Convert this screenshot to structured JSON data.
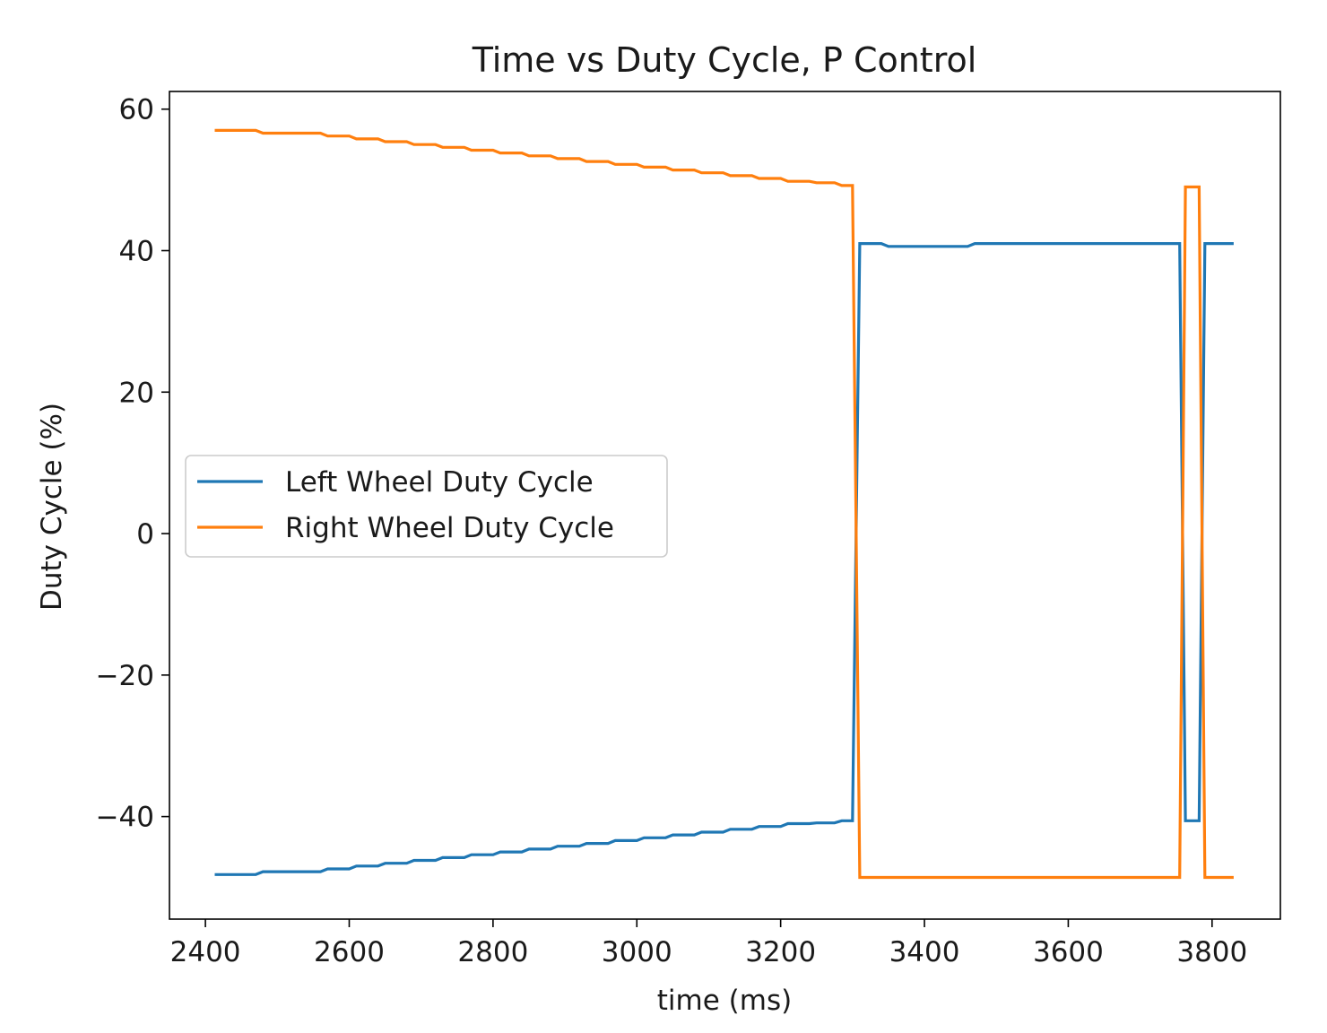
{
  "chart_data": {
    "type": "line",
    "title": "Time vs Duty Cycle, P Control",
    "xlabel": "time (ms)",
    "ylabel": "Duty Cycle (%)",
    "xlim": [
      2350,
      3895
    ],
    "ylim": [
      -54.5,
      62.5
    ],
    "xticks": [
      2400,
      2600,
      2800,
      3000,
      3200,
      3400,
      3600,
      3800
    ],
    "yticks": [
      60,
      40,
      20,
      0,
      -20,
      -40
    ],
    "ytick_labels": [
      "60",
      "40",
      "20",
      "0",
      "−20",
      "−40"
    ],
    "grid": false,
    "legend": "center-left",
    "series": [
      {
        "name": "Left Wheel Duty Cycle",
        "color": "#1f77b4",
        "x": [
          2415,
          2470,
          2480,
          2560,
          2570,
          2600,
          2610,
          2640,
          2650,
          2680,
          2690,
          2720,
          2730,
          2760,
          2770,
          2800,
          2810,
          2840,
          2850,
          2880,
          2890,
          2920,
          2930,
          2960,
          2970,
          3000,
          3010,
          3040,
          3050,
          3080,
          3090,
          3120,
          3130,
          3160,
          3170,
          3200,
          3210,
          3240,
          3250,
          3275,
          3285,
          3300,
          3310,
          3340,
          3350,
          3460,
          3470,
          3755,
          3763,
          3782,
          3790,
          3828
        ],
        "y": [
          -48.2,
          -48.2,
          -47.8,
          -47.8,
          -47.4,
          -47.4,
          -47.0,
          -47.0,
          -46.6,
          -46.6,
          -46.2,
          -46.2,
          -45.8,
          -45.8,
          -45.4,
          -45.4,
          -45.0,
          -45.0,
          -44.6,
          -44.6,
          -44.2,
          -44.2,
          -43.8,
          -43.8,
          -43.4,
          -43.4,
          -43.0,
          -43.0,
          -42.6,
          -42.6,
          -42.2,
          -42.2,
          -41.8,
          -41.8,
          -41.4,
          -41.4,
          -41.0,
          -41.0,
          -40.9,
          -40.9,
          -40.6,
          -40.6,
          41.0,
          41.0,
          40.6,
          40.6,
          41.0,
          41.0,
          -40.6,
          -40.6,
          41.0,
          41.0
        ]
      },
      {
        "name": "Right Wheel Duty Cycle",
        "color": "#ff7f0e",
        "x": [
          2415,
          2470,
          2480,
          2560,
          2570,
          2600,
          2610,
          2640,
          2650,
          2680,
          2690,
          2720,
          2730,
          2760,
          2770,
          2800,
          2810,
          2840,
          2850,
          2880,
          2890,
          2920,
          2930,
          2960,
          2970,
          3000,
          3010,
          3040,
          3050,
          3080,
          3090,
          3120,
          3130,
          3160,
          3170,
          3200,
          3210,
          3240,
          3250,
          3275,
          3285,
          3300,
          3310,
          3755,
          3763,
          3782,
          3790,
          3828
        ],
        "y": [
          57.0,
          57.0,
          56.6,
          56.6,
          56.2,
          56.2,
          55.8,
          55.8,
          55.4,
          55.4,
          55.0,
          55.0,
          54.6,
          54.6,
          54.2,
          54.2,
          53.8,
          53.8,
          53.4,
          53.4,
          53.0,
          53.0,
          52.6,
          52.6,
          52.2,
          52.2,
          51.8,
          51.8,
          51.4,
          51.4,
          51.0,
          51.0,
          50.6,
          50.6,
          50.2,
          50.2,
          49.8,
          49.8,
          49.6,
          49.6,
          49.2,
          49.2,
          -48.6,
          -48.6,
          49.0,
          49.0,
          -48.6,
          -48.6
        ]
      }
    ]
  }
}
